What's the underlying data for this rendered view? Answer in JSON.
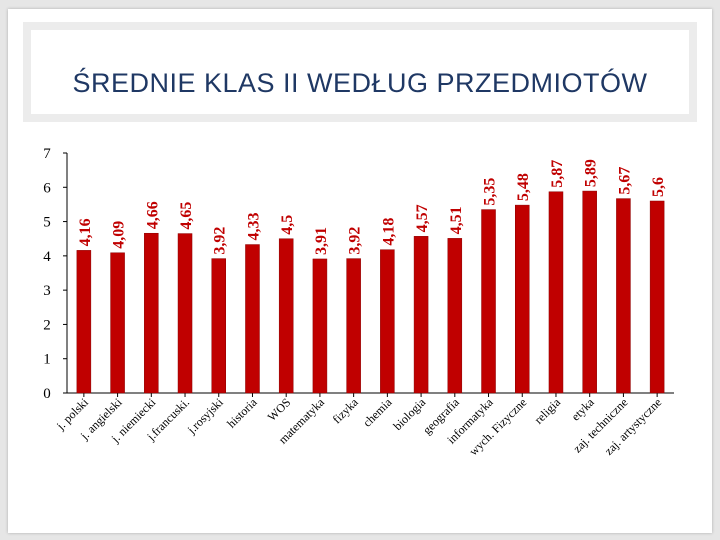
{
  "slide": {
    "title": "ŚREDNIE KLAS II WEDŁUG PRZEDMIOTÓW"
  },
  "colors": {
    "bar": "#c00000",
    "bar_edge": "#8b0000",
    "title": "#1f3864",
    "axis": "#000000",
    "data_label": "#c00000"
  },
  "chart_data": {
    "type": "bar",
    "categories": [
      "j. polski",
      "j. angielski",
      "j. niemiecki",
      "j.francuski.",
      "j.rosyjski",
      "historia",
      "WOS",
      "matematyka",
      "fizyka",
      "chemia",
      "biologia",
      "geografia",
      "informatyka",
      "wych. Fizyczne",
      "religia",
      "etyka",
      "zaj. techniczne",
      "zaj. artystyczne"
    ],
    "values": [
      4.16,
      4.09,
      4.66,
      4.65,
      3.92,
      4.33,
      4.5,
      3.91,
      3.92,
      4.18,
      4.57,
      4.51,
      5.35,
      5.48,
      5.87,
      5.89,
      5.67,
      5.6
    ],
    "data_labels": [
      "4,16",
      "4,09",
      "4,66",
      "4,65",
      "3,92",
      "4,33",
      "4,5",
      "3,91",
      "3,92",
      "4,18",
      "4,57",
      "4,51",
      "5,35",
      "5,48",
      "5,87",
      "5,89",
      "5,67",
      "5,6"
    ],
    "y_ticks": [
      "0",
      "1",
      "2",
      "3",
      "4",
      "5",
      "6",
      "7"
    ],
    "ylim": [
      0,
      7
    ],
    "grid": false,
    "legend": "none",
    "title": "",
    "xlabel": "",
    "ylabel": ""
  }
}
